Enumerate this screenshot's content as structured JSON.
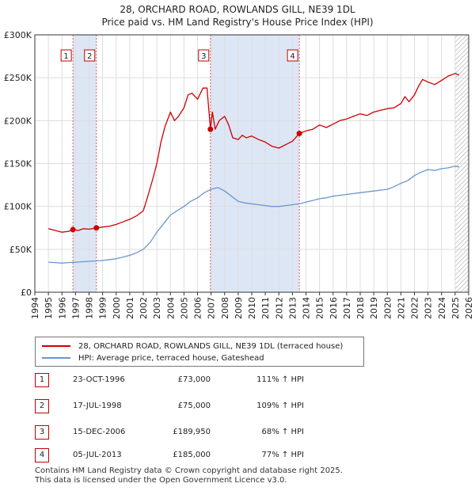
{
  "chart_data": {
    "type": "line",
    "title": "28, ORCHARD ROAD, ROWLANDS GILL, NE39 1DL",
    "subtitle": "Price paid vs. HM Land Registry's House Price Index (HPI)",
    "xlabel": "",
    "ylabel": "",
    "xlim": [
      1995,
      2026
    ],
    "ylim": [
      0,
      300000
    ],
    "x_ticks": [
      "1994",
      "1995",
      "1996",
      "1997",
      "1998",
      "1999",
      "2000",
      "2001",
      "2002",
      "2003",
      "2004",
      "2005",
      "2006",
      "2007",
      "2008",
      "2009",
      "2010",
      "2011",
      "2012",
      "2013",
      "2014",
      "2015",
      "2016",
      "2017",
      "2018",
      "2019",
      "2020",
      "2021",
      "2022",
      "2023",
      "2024",
      "2025",
      "2026"
    ],
    "y_ticks": [
      {
        "value": 0,
        "label": "£0"
      },
      {
        "value": 50000,
        "label": "£50K"
      },
      {
        "value": 100000,
        "label": "£100K"
      },
      {
        "value": 150000,
        "label": "£150K"
      },
      {
        "value": 200000,
        "label": "£200K"
      },
      {
        "value": 250000,
        "label": "£250K"
      },
      {
        "value": 300000,
        "label": "£300K"
      }
    ],
    "grid": true,
    "colors": {
      "property": "#cc0000",
      "hpi": "#6a96cf",
      "shade": "#dde6f5",
      "vline": "#e06060"
    },
    "series": [
      {
        "name": "28, ORCHARD ROAD, ROWLANDS GILL, NE39 1DL (terraced house)",
        "color": "#cc0000",
        "x": [
          1995.0,
          1995.5,
          1996.0,
          1996.5,
          1996.81,
          1997.2,
          1997.6,
          1998.0,
          1998.54,
          1999.0,
          1999.5,
          2000.0,
          2000.5,
          2001.0,
          2001.5,
          2002.0,
          2002.3,
          2002.7,
          2003.0,
          2003.3,
          2003.6,
          2004.0,
          2004.3,
          2004.6,
          2005.0,
          2005.3,
          2005.6,
          2006.0,
          2006.4,
          2006.7,
          2006.95,
          2007.1,
          2007.3,
          2007.6,
          2008.0,
          2008.3,
          2008.6,
          2009.0,
          2009.3,
          2009.6,
          2010.0,
          2010.5,
          2011.0,
          2011.5,
          2012.0,
          2012.5,
          2013.0,
          2013.51,
          2014.0,
          2014.5,
          2015.0,
          2015.5,
          2016.0,
          2016.5,
          2017.0,
          2017.5,
          2018.0,
          2018.5,
          2019.0,
          2019.5,
          2020.0,
          2020.5,
          2021.0,
          2021.3,
          2021.6,
          2022.0,
          2022.3,
          2022.6,
          2023.0,
          2023.5,
          2024.0,
          2024.5,
          2025.0,
          2025.3
        ],
        "values": [
          74000,
          72000,
          70000,
          71000,
          73000,
          72000,
          74000,
          73500,
          75000,
          76000,
          77000,
          79000,
          82000,
          85000,
          89000,
          95000,
          110000,
          132000,
          150000,
          175000,
          193000,
          210000,
          200000,
          205000,
          215000,
          230000,
          232000,
          225000,
          238000,
          238000,
          189950,
          210000,
          190000,
          200000,
          205000,
          195000,
          180000,
          178000,
          183000,
          180000,
          182000,
          178000,
          175000,
          170000,
          168000,
          172000,
          176000,
          185000,
          188000,
          190000,
          195000,
          192000,
          196000,
          200000,
          202000,
          205000,
          208000,
          206000,
          210000,
          212000,
          214000,
          215000,
          220000,
          228000,
          222000,
          230000,
          240000,
          248000,
          245000,
          242000,
          247000,
          252000,
          255000,
          253000
        ]
      },
      {
        "name": "HPI: Average price, terraced house, Gateshead",
        "color": "#6a96cf",
        "x": [
          1995.0,
          1995.5,
          1996.0,
          1996.5,
          1997.0,
          1997.5,
          1998.0,
          1998.5,
          1999.0,
          1999.5,
          2000.0,
          2000.5,
          2001.0,
          2001.5,
          2002.0,
          2002.5,
          2003.0,
          2003.5,
          2004.0,
          2004.5,
          2005.0,
          2005.5,
          2006.0,
          2006.5,
          2007.0,
          2007.5,
          2008.0,
          2008.5,
          2009.0,
          2009.5,
          2010.0,
          2010.5,
          2011.0,
          2011.5,
          2012.0,
          2012.5,
          2013.0,
          2013.5,
          2014.0,
          2014.5,
          2015.0,
          2015.5,
          2016.0,
          2016.5,
          2017.0,
          2017.5,
          2018.0,
          2018.5,
          2019.0,
          2019.5,
          2020.0,
          2020.5,
          2021.0,
          2021.5,
          2022.0,
          2022.5,
          2023.0,
          2023.5,
          2024.0,
          2024.5,
          2025.0,
          2025.3
        ],
        "values": [
          35000,
          34500,
          34000,
          34500,
          35000,
          35500,
          36000,
          36500,
          37000,
          38000,
          39000,
          41000,
          43000,
          46000,
          50000,
          58000,
          70000,
          80000,
          90000,
          95000,
          100000,
          106000,
          110000,
          116000,
          120000,
          122000,
          118000,
          112000,
          106000,
          104000,
          103000,
          102000,
          101000,
          100000,
          100000,
          101000,
          102000,
          103000,
          105000,
          107000,
          109000,
          110000,
          112000,
          113000,
          114000,
          115000,
          116000,
          117000,
          118000,
          119000,
          120000,
          123000,
          127000,
          130000,
          136000,
          140000,
          143000,
          142000,
          144000,
          145000,
          147000,
          146000
        ]
      }
    ],
    "markers": [
      {
        "label": "1",
        "x": 1996.81,
        "value": 73000
      },
      {
        "label": "2",
        "x": 1998.54,
        "value": 75000
      },
      {
        "label": "3",
        "x": 2006.95,
        "value": 189950
      },
      {
        "label": "4",
        "x": 2013.51,
        "value": 185000
      }
    ],
    "shaded_ranges": [
      [
        1996.81,
        1998.54
      ],
      [
        2006.95,
        2013.51
      ]
    ],
    "hatched_from": 2025.0
  },
  "legend": {
    "property": "28, ORCHARD ROAD, ROWLANDS GILL, NE39 1DL (terraced house)",
    "hpi": "HPI: Average price, terraced house, Gateshead"
  },
  "transactions": [
    {
      "num": "1",
      "date": "23-OCT-1996",
      "price": "£73,000",
      "hpi": "111% ↑ HPI"
    },
    {
      "num": "2",
      "date": "17-JUL-1998",
      "price": "£75,000",
      "hpi": "109% ↑ HPI"
    },
    {
      "num": "3",
      "date": "15-DEC-2006",
      "price": "£189,950",
      "hpi": "68% ↑ HPI"
    },
    {
      "num": "4",
      "date": "05-JUL-2013",
      "price": "£185,000",
      "hpi": "77% ↑ HPI"
    }
  ],
  "footer": {
    "line1": "Contains HM Land Registry data © Crown copyright and database right 2025.",
    "line2": "This data is licensed under the Open Government Licence v3.0."
  }
}
